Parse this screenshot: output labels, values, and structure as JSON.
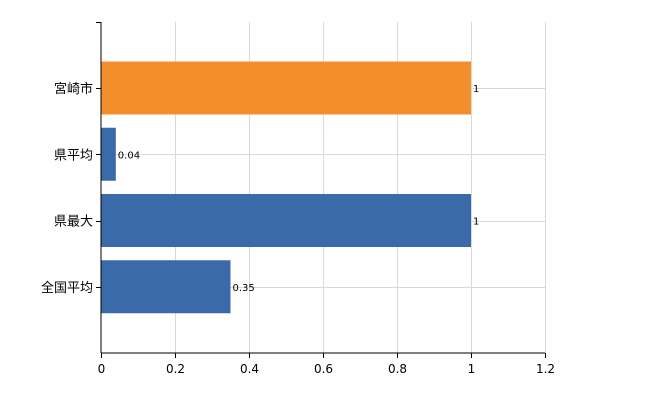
{
  "chart_data": {
    "type": "bar",
    "orientation": "horizontal",
    "title": "",
    "xlabel": "",
    "ylabel": "",
    "xlim": [
      0,
      1.2
    ],
    "x_ticks": [
      0,
      0.2,
      0.4,
      0.6,
      0.8,
      1,
      1.2
    ],
    "x_tick_labels": [
      "0",
      "0.2",
      "0.4",
      "0.6",
      "0.8",
      "1",
      "1.2"
    ],
    "grid": true,
    "legend": "none",
    "categories": [
      "宮崎市",
      "県平均",
      "県最大",
      "全国平均"
    ],
    "values": [
      1,
      0.04,
      1,
      0.35
    ],
    "value_labels": [
      "1",
      "0.04",
      "1",
      "0.35"
    ],
    "colors": [
      "#f28f2c",
      "#3b6aa8",
      "#3b6aa8",
      "#3b6aa8"
    ]
  }
}
